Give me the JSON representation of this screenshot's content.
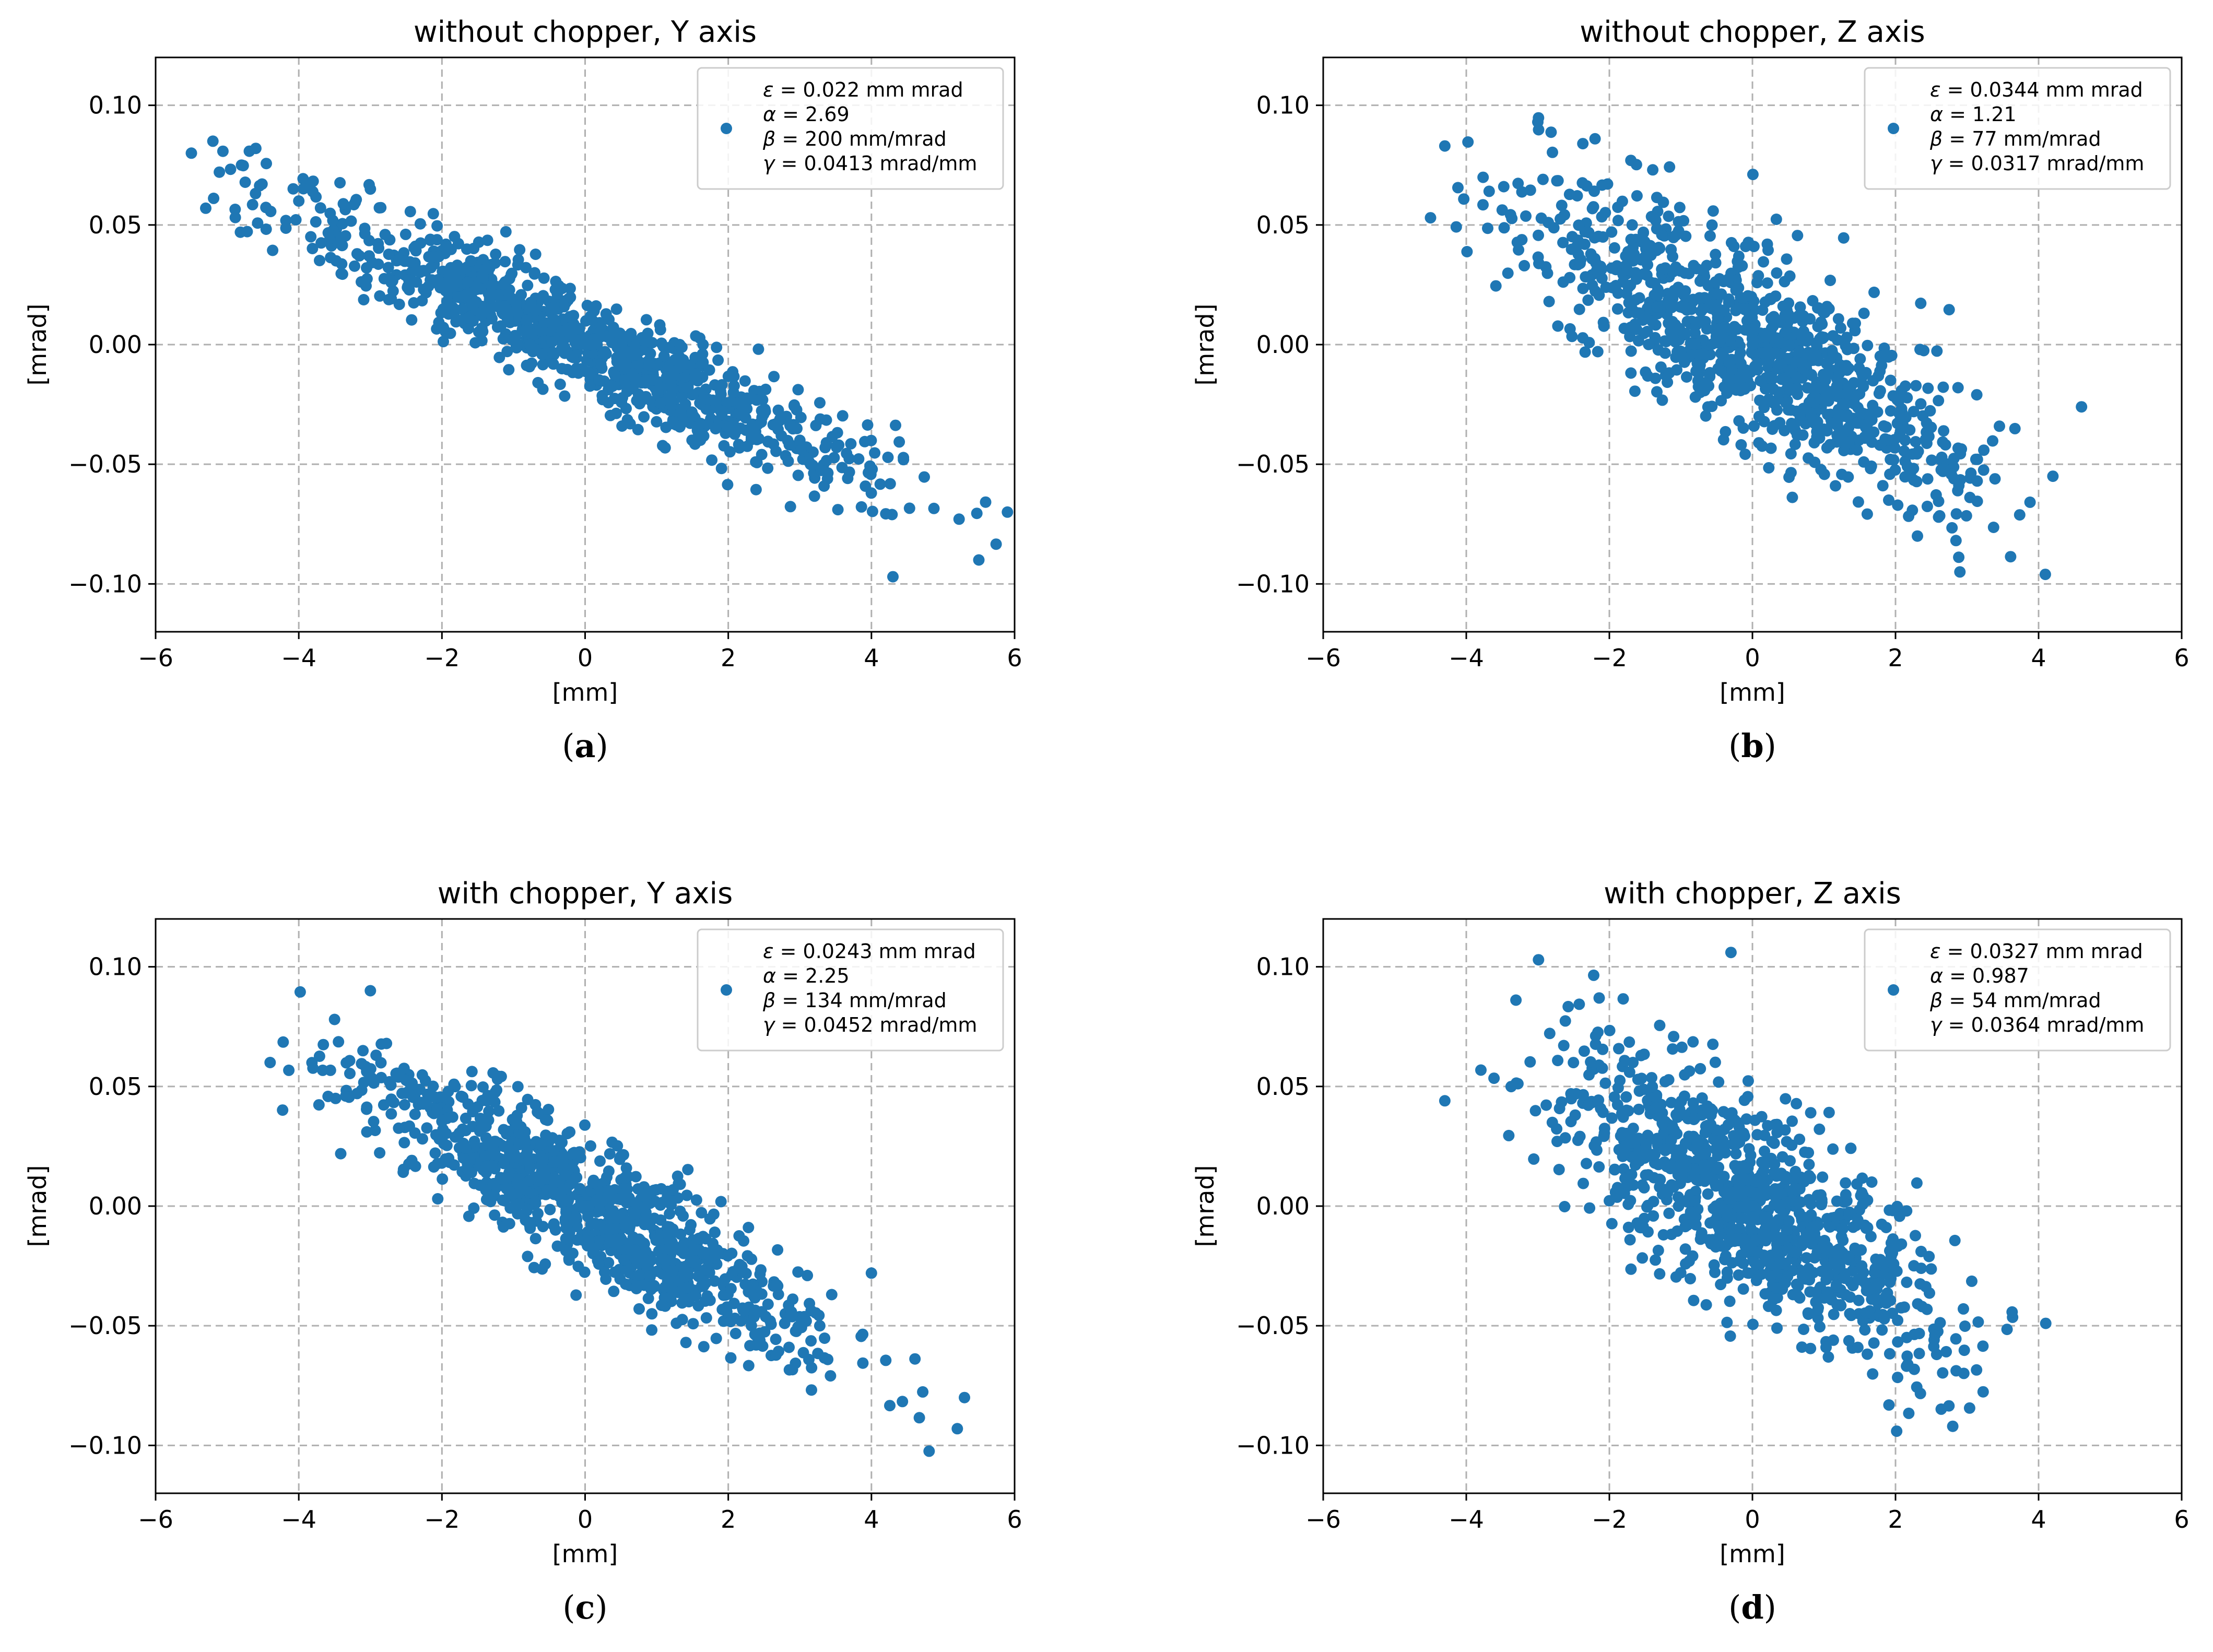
{
  "colors": {
    "point": "#1f77b4",
    "grid": "#b0b0b0",
    "axis": "#000000",
    "legend_border": "#cccccc"
  },
  "chart_data": [
    {
      "type": "scatter",
      "title": "without chopper, Y axis",
      "caption_letter": "a",
      "xlabel": "[mm]",
      "ylabel": "[mrad]",
      "xlim": [
        -6,
        6
      ],
      "ylim": [
        -0.12,
        0.12
      ],
      "xticks": [
        -6,
        -4,
        -2,
        0,
        2,
        4,
        6
      ],
      "yticks": [
        -0.1,
        -0.05,
        0.0,
        0.05,
        0.1
      ],
      "xtick_labels": [
        "−6",
        "−4",
        "−2",
        "0",
        "2",
        "4",
        "6"
      ],
      "ytick_labels": [
        "−0.10",
        "−0.05",
        "0.00",
        "0.05",
        "0.10"
      ],
      "grid": true,
      "legend_position": "top-right",
      "legend_lines": [
        {
          "sym": "ε",
          "text": " =  0.022 mm mrad"
        },
        {
          "sym": "α",
          "text": " =  2.69"
        },
        {
          "sym": "β",
          "text": " =  200 mm/mrad"
        },
        {
          "sym": "γ",
          "text": " =  0.0413 mrad/mm"
        }
      ],
      "distribution": {
        "n": 1000,
        "x_sigma": 2.0,
        "slope": -0.01345,
        "resid_sigma": 0.0107,
        "x_min": -5.6,
        "x_max": 5.9
      },
      "points_sample": [
        [
          -5.5,
          0.08
        ],
        [
          -5.2,
          0.085
        ],
        [
          -5.3,
          0.057
        ],
        [
          -4.8,
          0.075
        ],
        [
          -4.6,
          0.082
        ],
        [
          -4.0,
          0.06
        ],
        [
          -3.0,
          0.065
        ],
        [
          0.0,
          0.0
        ],
        [
          3.0,
          -0.04
        ],
        [
          4.3,
          -0.097
        ],
        [
          5.5,
          -0.09
        ],
        [
          5.9,
          -0.07
        ]
      ]
    },
    {
      "type": "scatter",
      "title": "without chopper, Z axis",
      "caption_letter": "b",
      "xlabel": "[mm]",
      "ylabel": "[mrad]",
      "xlim": [
        -6,
        6
      ],
      "ylim": [
        -0.12,
        0.12
      ],
      "xticks": [
        -6,
        -4,
        -2,
        0,
        2,
        4,
        6
      ],
      "yticks": [
        -0.1,
        -0.05,
        0.0,
        0.05,
        0.1
      ],
      "xtick_labels": [
        "−6",
        "−4",
        "−2",
        "0",
        "2",
        "4",
        "6"
      ],
      "ytick_labels": [
        "−0.10",
        "−0.05",
        "0.00",
        "0.05",
        "0.10"
      ],
      "grid": true,
      "legend_position": "top-right",
      "legend_lines": [
        {
          "sym": "ε",
          "text": " =  0.0344 mm mrad"
        },
        {
          "sym": "α",
          "text": " =  1.21"
        },
        {
          "sym": "β",
          "text": " =  77 mm/mrad"
        },
        {
          "sym": "γ",
          "text": " =  0.0317 mrad/mm"
        }
      ],
      "distribution": {
        "n": 1000,
        "x_sigma": 1.55,
        "slope": -0.0157,
        "resid_sigma": 0.0195,
        "x_min": -4.5,
        "x_max": 4.6
      },
      "points_sample": [
        [
          -4.5,
          0.053
        ],
        [
          -4.3,
          0.083
        ],
        [
          -3.0,
          0.093
        ],
        [
          -2.2,
          0.086
        ],
        [
          0.0,
          0.0
        ],
        [
          2.9,
          -0.095
        ],
        [
          4.2,
          -0.055
        ],
        [
          4.6,
          -0.026
        ]
      ]
    },
    {
      "type": "scatter",
      "title": "with chopper, Y axis",
      "caption_letter": "c",
      "xlabel": "[mm]",
      "ylabel": "[mrad]",
      "xlim": [
        -6,
        6
      ],
      "ylim": [
        -0.12,
        0.12
      ],
      "xticks": [
        -6,
        -4,
        -2,
        0,
        2,
        4,
        6
      ],
      "yticks": [
        -0.1,
        -0.05,
        0.0,
        0.05,
        0.1
      ],
      "xtick_labels": [
        "−6",
        "−4",
        "−2",
        "0",
        "2",
        "4",
        "6"
      ],
      "ytick_labels": [
        "−0.10",
        "−0.05",
        "0.00",
        "0.05",
        "0.10"
      ],
      "grid": true,
      "legend_position": "top-right",
      "legend_lines": [
        {
          "sym": "ε",
          "text": " =  0.0243 mm mrad"
        },
        {
          "sym": "α",
          "text": " =  2.25"
        },
        {
          "sym": "β",
          "text": " =  134 mm/mrad"
        },
        {
          "sym": "γ",
          "text": " =  0.0452 mrad/mm"
        }
      ],
      "distribution": {
        "n": 1000,
        "x_sigma": 1.64,
        "slope": -0.0168,
        "resid_sigma": 0.0135,
        "x_min": -4.4,
        "x_max": 5.3
      },
      "points_sample": [
        [
          -4.4,
          0.06
        ],
        [
          -3.0,
          0.09
        ],
        [
          -3.5,
          0.078
        ],
        [
          0.0,
          0.0
        ],
        [
          4.0,
          -0.028
        ],
        [
          5.2,
          -0.093
        ],
        [
          5.3,
          -0.08
        ]
      ]
    },
    {
      "type": "scatter",
      "title": "with chopper, Z axis",
      "caption_letter": "d",
      "xlabel": "[mm]",
      "ylabel": "[mrad]",
      "xlim": [
        -6,
        6
      ],
      "ylim": [
        -0.12,
        0.12
      ],
      "xticks": [
        -6,
        -4,
        -2,
        0,
        2,
        4,
        6
      ],
      "yticks": [
        -0.1,
        -0.05,
        0.0,
        0.05,
        0.1
      ],
      "xtick_labels": [
        "−6",
        "−4",
        "−2",
        "0",
        "2",
        "4",
        "6"
      ],
      "ytick_labels": [
        "−0.10",
        "−0.05",
        "0.00",
        "0.05",
        "0.10"
      ],
      "grid": true,
      "legend_position": "top-right",
      "legend_lines": [
        {
          "sym": "ε",
          "text": " =  0.0327 mm mrad"
        },
        {
          "sym": "α",
          "text": " =  0.987"
        },
        {
          "sym": "β",
          "text": " =  54 mm/mrad"
        },
        {
          "sym": "γ",
          "text": " =  0.0364 mrad/mm"
        }
      ],
      "distribution": {
        "n": 1000,
        "x_sigma": 1.3,
        "slope": -0.0183,
        "resid_sigma": 0.0215,
        "x_min": -4.3,
        "x_max": 4.1
      },
      "points_sample": [
        [
          -4.3,
          0.044
        ],
        [
          -0.3,
          0.106
        ],
        [
          0.0,
          0.0
        ],
        [
          2.8,
          -0.092
        ],
        [
          4.1,
          -0.049
        ]
      ]
    }
  ]
}
